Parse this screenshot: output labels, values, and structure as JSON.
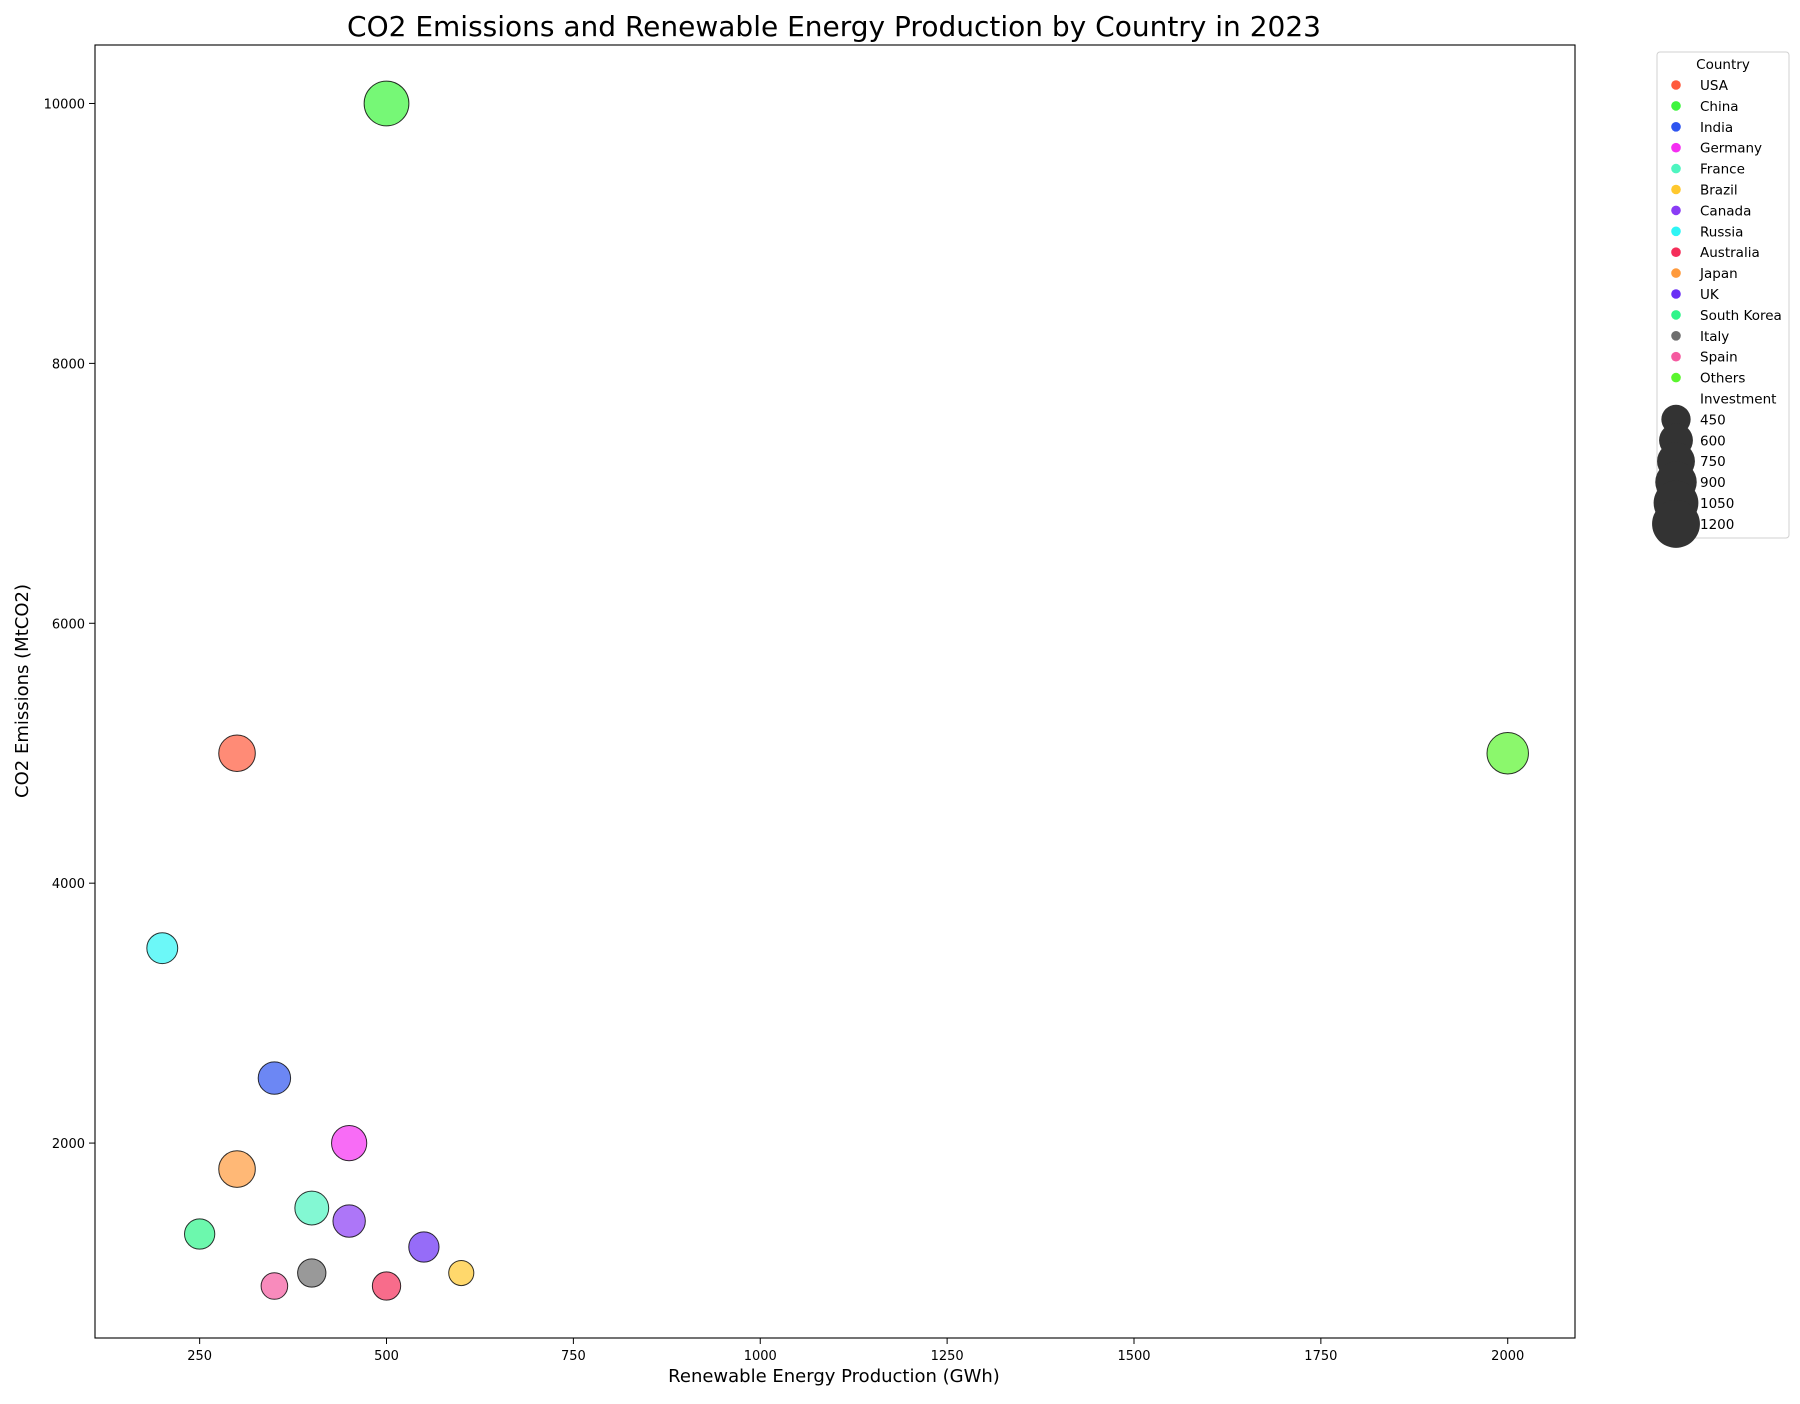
{
  "chart_data": {
    "type": "scatter",
    "title": "CO2 Emissions and Renewable Energy Production by Country in 2023",
    "xlabel": "Renewable Energy Production (GWh)",
    "ylabel": "CO2 Emissions (MtCO2)",
    "xlim": [
      110,
      2090
    ],
    "ylim": [
      500,
      10450
    ],
    "xticks": [
      250,
      500,
      750,
      1000,
      1250,
      1500,
      1750,
      2000
    ],
    "yticks": [
      2000,
      4000,
      6000,
      8000,
      10000
    ],
    "grid": false,
    "legend": {
      "placement": "outside-right",
      "country_title": "Country",
      "size_title": "Investment",
      "size_values": [
        450,
        600,
        750,
        900,
        1050,
        1200
      ]
    },
    "series": [
      {
        "name": "USA",
        "color": "#ff5a3c",
        "x": 300,
        "y": 5000,
        "investment": 700
      },
      {
        "name": "China",
        "color": "#3cf53c",
        "x": 500,
        "y": 10000,
        "investment": 1050
      },
      {
        "name": "India",
        "color": "#2e54f0",
        "x": 350,
        "y": 2500,
        "investment": 550
      },
      {
        "name": "Germany",
        "color": "#f52ef2",
        "x": 450,
        "y": 2000,
        "investment": 650
      },
      {
        "name": "France",
        "color": "#4ef5c0",
        "x": 400,
        "y": 1500,
        "investment": 600
      },
      {
        "name": "Brazil",
        "color": "#ffc82e",
        "x": 600,
        "y": 1000,
        "investment": 330
      },
      {
        "name": "Canada",
        "color": "#8a3cf5",
        "x": 450,
        "y": 1400,
        "investment": 550
      },
      {
        "name": "Russia",
        "color": "#2ef5f5",
        "x": 200,
        "y": 3500,
        "investment": 500
      },
      {
        "name": "Australia",
        "color": "#f52e5a",
        "x": 500,
        "y": 900,
        "investment": 420
      },
      {
        "name": "Japan",
        "color": "#ff9a3c",
        "x": 300,
        "y": 1800,
        "investment": 700
      },
      {
        "name": "UK",
        "color": "#6a2ef5",
        "x": 550,
        "y": 1200,
        "investment": 480
      },
      {
        "name": "South Korea",
        "color": "#2ef58a",
        "x": 250,
        "y": 1300,
        "investment": 480
      },
      {
        "name": "Italy",
        "color": "#6e6e6e",
        "x": 400,
        "y": 1000,
        "investment": 420
      },
      {
        "name": "Spain",
        "color": "#f55aa0",
        "x": 350,
        "y": 900,
        "investment": 370
      },
      {
        "name": "Others",
        "color": "#5af52e",
        "x": 2000,
        "y": 5000,
        "investment": 900
      }
    ]
  }
}
